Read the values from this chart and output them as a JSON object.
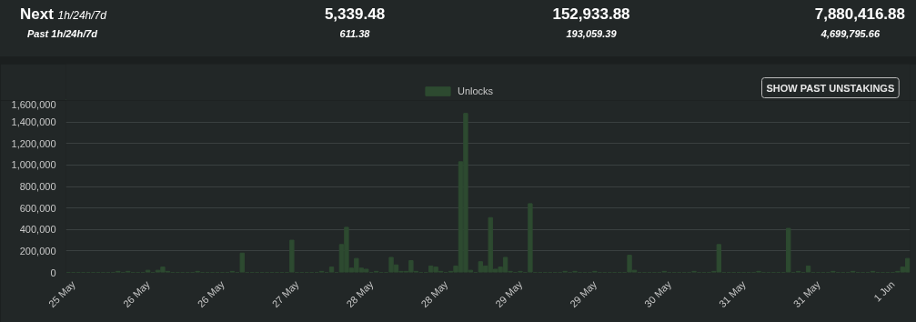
{
  "chart_data": {
    "type": "bar",
    "annotations": [
      "Next",
      "1h/24h/7d",
      "5,339.48",
      "152,933.88",
      "7,880,416.88",
      "Past 1h/24h/7d",
      "611.38",
      "193,059.39",
      "4,699,795.66",
      "SHOW PAST UNSTAKINGS"
    ],
    "categories": [
      null,
      "25 May",
      null,
      null,
      null,
      null,
      null,
      null,
      null,
      null,
      null,
      null,
      null,
      null,
      null,
      null,
      "26 May",
      null,
      null,
      null,
      null,
      null,
      null,
      null,
      null,
      null,
      null,
      null,
      null,
      null,
      null,
      "26 May",
      null,
      null,
      null,
      null,
      null,
      null,
      null,
      null,
      null,
      null,
      null,
      null,
      null,
      null,
      "27 May",
      null,
      null,
      null,
      null,
      null,
      null,
      null,
      null,
      null,
      null,
      null,
      null,
      null,
      null,
      "28 May",
      null,
      null,
      null,
      null,
      null,
      null,
      null,
      null,
      null,
      null,
      null,
      null,
      null,
      null,
      "28 May",
      null,
      null,
      null,
      null,
      null,
      null,
      null,
      null,
      null,
      null,
      null,
      null,
      null,
      null,
      "29 May",
      null,
      null,
      null,
      null,
      null,
      null,
      null,
      null,
      null,
      null,
      null,
      null,
      null,
      null,
      "29 May",
      null,
      null,
      null,
      null,
      null,
      null,
      null,
      null,
      null,
      null,
      null,
      null,
      null,
      null,
      "30 May",
      null,
      null,
      null,
      null,
      null,
      null,
      null,
      null,
      null,
      null,
      null,
      null,
      null,
      null,
      "31 May",
      null,
      null,
      null,
      null,
      null,
      null,
      null,
      null,
      null,
      null,
      null,
      null,
      null,
      null,
      "31 May",
      null,
      null,
      null,
      null,
      null,
      null,
      null,
      null,
      null,
      null,
      null,
      null,
      null,
      null,
      "1 Jun",
      null,
      null,
      null
    ],
    "series": [
      {
        "name": "Unlocks",
        "color": "#2d4a30",
        "values": [
          0,
          0,
          0,
          0,
          0,
          0,
          0,
          0,
          0,
          0,
          10000,
          0,
          10000,
          0,
          0,
          0,
          20000,
          0,
          20000,
          50000,
          10000,
          0,
          0,
          0,
          0,
          0,
          10000,
          0,
          0,
          0,
          0,
          0,
          0,
          10000,
          0,
          180000,
          0,
          0,
          0,
          0,
          0,
          0,
          0,
          0,
          0,
          300000,
          0,
          0,
          0,
          0,
          0,
          10000,
          0,
          50000,
          0,
          260000,
          420000,
          40000,
          130000,
          40000,
          30000,
          0,
          10000,
          0,
          0,
          140000,
          70000,
          10000,
          10000,
          110000,
          10000,
          0,
          0,
          60000,
          50000,
          10000,
          0,
          10000,
          60000,
          1030000,
          1480000,
          20000,
          0,
          100000,
          60000,
          510000,
          30000,
          50000,
          140000,
          10000,
          0,
          10000,
          0,
          640000,
          0,
          0,
          0,
          0,
          0,
          0,
          10000,
          0,
          10000,
          0,
          0,
          0,
          10000,
          0,
          0,
          0,
          0,
          0,
          0,
          160000,
          20000,
          0,
          0,
          0,
          0,
          0,
          10000,
          0,
          0,
          0,
          0,
          0,
          10000,
          0,
          0,
          0,
          10000,
          260000,
          0,
          0,
          0,
          0,
          0,
          0,
          0,
          10000,
          0,
          0,
          0,
          0,
          0,
          410000,
          0,
          10000,
          0,
          60000,
          0,
          0,
          0,
          0,
          10000,
          0,
          0,
          0,
          10000,
          0,
          0,
          0,
          10000,
          0,
          0,
          0,
          0,
          10000,
          50000,
          130000
        ]
      }
    ],
    "ylim": [
      0,
      1600000
    ],
    "yticks": [
      {
        "value": 0,
        "label": "0"
      },
      {
        "value": 200000,
        "label": "200,000"
      },
      {
        "value": 400000,
        "label": "400,000"
      },
      {
        "value": 600000,
        "label": "600,000"
      },
      {
        "value": 800000,
        "label": "800,000"
      },
      {
        "value": 1000000,
        "label": "1,000,000"
      },
      {
        "value": 1200000,
        "label": "1,200,000"
      },
      {
        "value": 1400000,
        "label": "1,400,000"
      },
      {
        "value": 1600000,
        "label": "1,600,000"
      }
    ],
    "grid": "y",
    "legend": "top"
  }
}
